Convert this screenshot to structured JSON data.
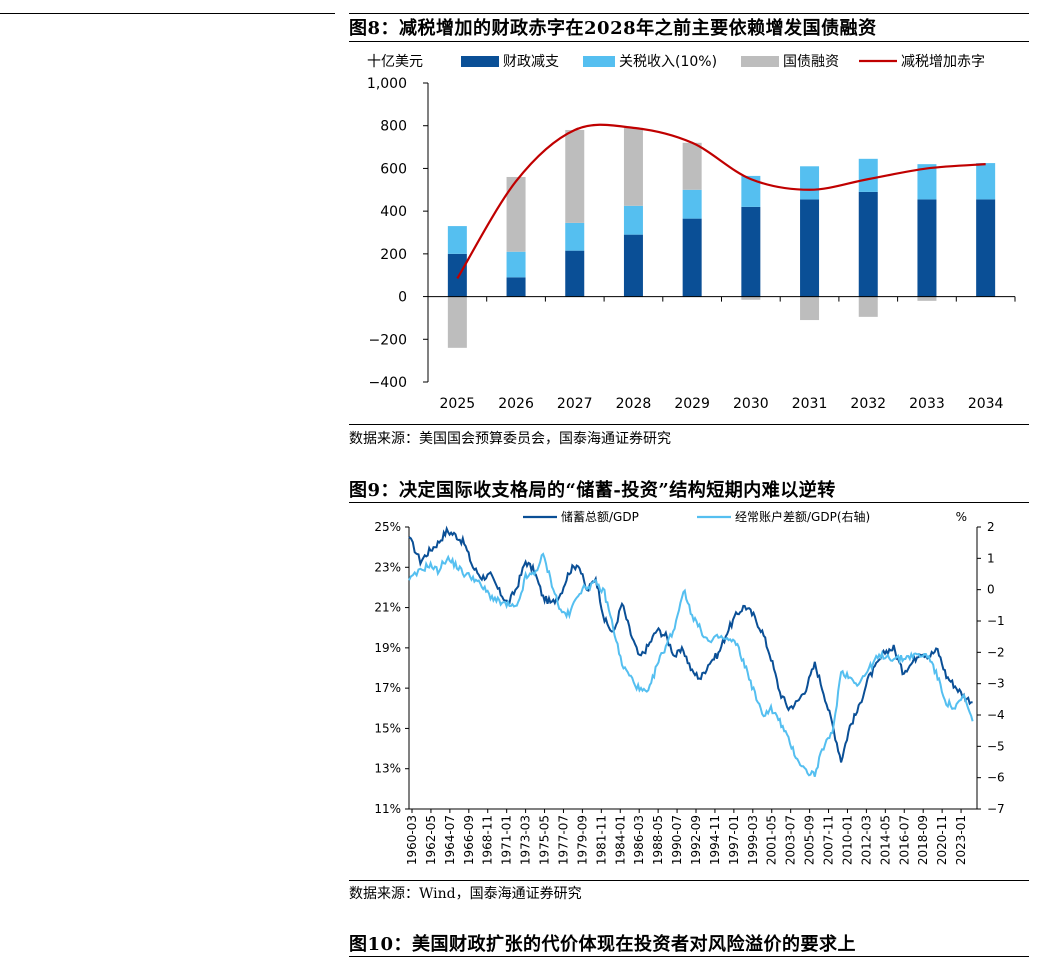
{
  "figures": [
    {
      "title": "图8：减税增加的财政赤字在2028年之前主要依赖增发国债融资",
      "source": "数据来源：美国国会预算委员会，国泰海通证券研究"
    },
    {
      "title": "图9：决定国际收支格局的“储蓄-投资”结构短期内难以逆转",
      "source": "数据来源：Wind，国泰海通证券研究"
    },
    {
      "title": "图10：美国财政扩张的代价体现在投资者对风险溢价的要求上"
    }
  ],
  "chart_data": [
    {
      "type": "bar",
      "stacked": true,
      "unit_label": "十亿美元",
      "categories": [
        "2025",
        "2026",
        "2027",
        "2028",
        "2029",
        "2030",
        "2031",
        "2032",
        "2033",
        "2034"
      ],
      "series": [
        {
          "name": "财政减支",
          "kind": "bar",
          "color": "#0a4f96",
          "values": [
            200,
            90,
            215,
            290,
            365,
            420,
            455,
            490,
            455,
            455
          ]
        },
        {
          "name": "关税收入(10%)",
          "kind": "bar",
          "color": "#55bff0",
          "values": [
            130,
            120,
            130,
            135,
            135,
            145,
            155,
            155,
            165,
            170
          ]
        },
        {
          "name": "国债融资",
          "kind": "bar",
          "color": "#bdbdbd",
          "values": [
            -240,
            350,
            435,
            365,
            220,
            -15,
            -110,
            -95,
            -20,
            0
          ]
        },
        {
          "name": "减税增加赤字",
          "kind": "line",
          "color": "#c00000",
          "values": [
            85,
            540,
            780,
            790,
            720,
            550,
            500,
            550,
            600,
            620
          ]
        }
      ],
      "ylim": [
        -400,
        1000
      ],
      "yticks": [
        -400,
        -200,
        0,
        200,
        400,
        600,
        800,
        1000
      ],
      "ytick_labels": [
        "−400",
        "−200",
        "0",
        "200",
        "400",
        "600",
        "800",
        "1,000"
      ],
      "legend_position": "top"
    },
    {
      "type": "line",
      "x_tick_labels": [
        "1960-03",
        "1962-05",
        "1964-07",
        "1966-09",
        "1968-11",
        "1971-01",
        "1973-03",
        "1975-05",
        "1977-07",
        "1979-09",
        "1981-11",
        "1984-01",
        "1986-03",
        "1988-05",
        "1990-07",
        "1992-09",
        "1994-11",
        "1997-01",
        "1999-03",
        "2001-05",
        "2003-07",
        "2005-09",
        "2007-11",
        "2010-01",
        "2012-03",
        "2014-05",
        "2016-07",
        "2018-09",
        "2020-11",
        "2023-01"
      ],
      "left_axis": {
        "ylim": [
          11,
          25
        ],
        "ticks": [
          11,
          13,
          15,
          17,
          19,
          21,
          23,
          25
        ],
        "unit": "%"
      },
      "right_axis": {
        "ylim": [
          -7,
          2
        ],
        "ticks": [
          -7,
          -6,
          -5,
          -4,
          -3,
          -2,
          -1,
          0,
          1,
          2
        ],
        "unit": "%"
      },
      "series": [
        {
          "name": "储蓄总额/GDP",
          "axis": "left",
          "color": "#0a4f96",
          "x": [
            1960.2,
            1961.5,
            1962.5,
            1963.5,
            1964.5,
            1965.5,
            1966.5,
            1967.5,
            1968.5,
            1969.5,
            1970.5,
            1971.5,
            1972.5,
            1973.5,
            1974.5,
            1975.5,
            1976.5,
            1977.5,
            1978.5,
            1979.5,
            1980.5,
            1981.5,
            1982.5,
            1983.5,
            1984.5,
            1985.5,
            1986.5,
            1987.5,
            1988.5,
            1989.5,
            1990.5,
            1991.5,
            1992.5,
            1993.5,
            1994.5,
            1995.5,
            1996.5,
            1997.5,
            1998.5,
            1999.5,
            2000.5,
            2001.5,
            2002.5,
            2003.5,
            2004.5,
            2005.5,
            2006.5,
            2007.5,
            2008.5,
            2009.5,
            2010.5,
            2011.5,
            2012.5,
            2013.5,
            2014.5,
            2015.5,
            2016.5,
            2017.5,
            2018.5,
            2019.5,
            2020.5,
            2021.5,
            2022.5,
            2023.5,
            2024.5
          ],
          "values": [
            24.5,
            23.3,
            23.8,
            24.2,
            24.8,
            24.6,
            24.2,
            23.0,
            22.5,
            22.6,
            21.8,
            21.2,
            22.0,
            23.3,
            22.8,
            21.5,
            21.2,
            21.7,
            22.8,
            23.2,
            21.8,
            22.5,
            20.4,
            19.7,
            21.2,
            19.7,
            18.5,
            19.1,
            19.9,
            19.6,
            18.6,
            18.9,
            17.8,
            17.5,
            18.3,
            18.7,
            19.8,
            20.6,
            21.1,
            20.6,
            19.8,
            18.5,
            16.8,
            16.0,
            16.3,
            17.0,
            18.2,
            16.8,
            15.2,
            13.4,
            15.1,
            16.0,
            17.4,
            18.1,
            18.8,
            19.0,
            17.8,
            18.2,
            18.8,
            18.6,
            18.9,
            17.6,
            17.1,
            16.6,
            16.3
          ]
        },
        {
          "name": "经常账户差额/GDP(右轴)",
          "axis": "right",
          "color": "#55bff0",
          "x": [
            1960.2,
            1961.5,
            1962.5,
            1963.5,
            1964.5,
            1965.5,
            1966.5,
            1967.5,
            1968.5,
            1969.5,
            1970.5,
            1971.5,
            1972.5,
            1973.5,
            1974.5,
            1975.5,
            1976.5,
            1977.5,
            1978.5,
            1979.5,
            1980.5,
            1981.5,
            1982.5,
            1983.5,
            1984.5,
            1985.5,
            1986.5,
            1987.5,
            1988.5,
            1989.5,
            1990.5,
            1991.5,
            1992.5,
            1993.5,
            1994.5,
            1995.5,
            1996.5,
            1997.5,
            1998.5,
            1999.5,
            2000.5,
            2001.5,
            2002.5,
            2003.5,
            2004.5,
            2005.5,
            2006.5,
            2007.5,
            2008.5,
            2009.5,
            2010.5,
            2011.5,
            2012.5,
            2013.5,
            2014.5,
            2015.5,
            2016.5,
            2017.5,
            2018.5,
            2019.5,
            2020.5,
            2021.5,
            2022.5,
            2023.5,
            2024.5
          ],
          "values": [
            0.3,
            0.6,
            0.8,
            0.6,
            1.0,
            0.8,
            0.5,
            0.4,
            0.1,
            -0.2,
            -0.4,
            -0.5,
            -0.6,
            0.4,
            0.5,
            1.1,
            0.2,
            -0.7,
            -0.8,
            -0.1,
            0.1,
            0.2,
            -0.1,
            -1.2,
            -2.4,
            -2.8,
            -3.2,
            -3.3,
            -2.4,
            -1.8,
            -1.2,
            0.0,
            -0.8,
            -1.3,
            -1.7,
            -1.5,
            -1.6,
            -1.7,
            -2.4,
            -3.2,
            -4.0,
            -3.8,
            -4.2,
            -4.8,
            -5.4,
            -5.8,
            -5.9,
            -5.0,
            -4.6,
            -2.6,
            -2.8,
            -3.0,
            -2.6,
            -2.2,
            -2.1,
            -2.2,
            -2.2,
            -2.1,
            -2.1,
            -2.1,
            -2.8,
            -3.6,
            -3.8,
            -3.4,
            -4.2
          ]
        }
      ]
    }
  ]
}
